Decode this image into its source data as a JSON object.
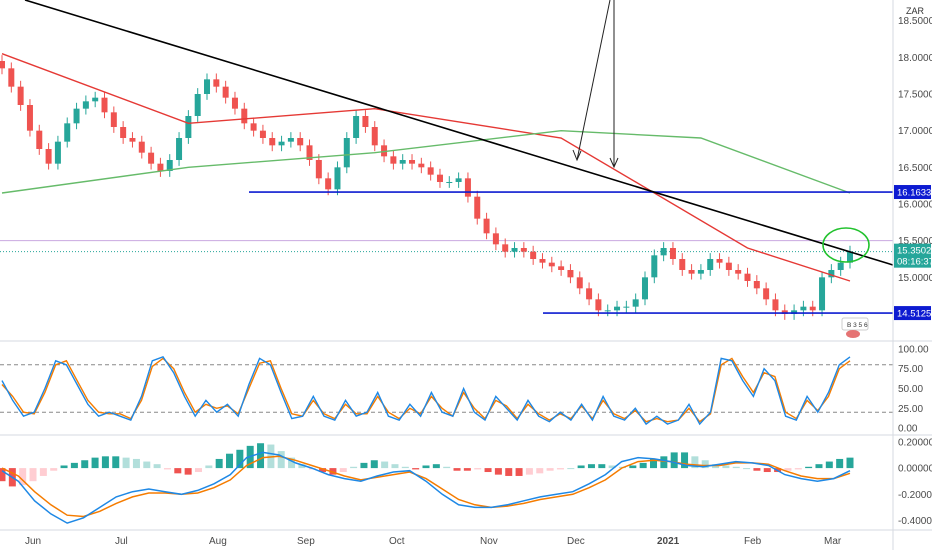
{
  "currency_label": "ZAR",
  "current_price": {
    "price": "15.35021",
    "countdown": "08:16:37"
  },
  "badge_text": "B 3 5 6",
  "horizontal_levels": [
    "16.16333",
    "14.51256"
  ],
  "colors": {
    "bull": "#26a69a",
    "bear": "#ef5350",
    "ma_red": "#e53935",
    "ma_green": "#66bb6a",
    "level_blue": "#0d1bd1",
    "trend": "#000000",
    "stoch_k": "#1e88e5",
    "stoch_d": "#f57c00",
    "macd": "#1e88e5",
    "signal": "#f57c00",
    "annot_green": "#22c22e",
    "price_tag": "#26a69a"
  },
  "chart_data": [
    {
      "type": "candlestick",
      "x_ticks": [
        "Jun",
        "Jul",
        "Aug",
        "Sep",
        "Oct",
        "Nov",
        "Dec",
        "2021",
        "Feb",
        "Mar"
      ],
      "y_ticks": [
        "18.50000",
        "18.00000",
        "17.50000",
        "17.00000",
        "16.50000",
        "16.00000",
        "15.50000",
        "15.00000"
      ],
      "ylim": [
        14.2,
        18.7
      ],
      "grid": false,
      "closes": [
        17.85,
        17.6,
        17.35,
        17.0,
        16.75,
        16.55,
        16.85,
        17.1,
        17.3,
        17.4,
        17.45,
        17.25,
        17.05,
        16.9,
        16.85,
        16.7,
        16.55,
        16.45,
        16.6,
        16.9,
        17.2,
        17.5,
        17.7,
        17.6,
        17.45,
        17.3,
        17.1,
        17.0,
        16.9,
        16.8,
        16.85,
        16.9,
        16.8,
        16.6,
        16.35,
        16.2,
        16.5,
        16.9,
        17.2,
        17.05,
        16.8,
        16.65,
        16.55,
        16.6,
        16.55,
        16.5,
        16.4,
        16.3,
        16.3,
        16.35,
        16.1,
        15.8,
        15.6,
        15.45,
        15.35,
        15.4,
        15.35,
        15.25,
        15.2,
        15.15,
        15.1,
        15.0,
        14.85,
        14.7,
        14.55,
        14.55,
        14.6,
        14.6,
        14.7,
        15.0,
        15.3,
        15.4,
        15.25,
        15.1,
        15.05,
        15.1,
        15.25,
        15.2,
        15.1,
        15.05,
        14.95,
        14.85,
        14.7,
        14.55,
        14.5,
        14.55,
        14.6,
        14.55,
        15.0,
        15.1,
        15.2,
        15.35
      ],
      "series": [
        {
          "name": "",
          "line": "red_ma",
          "x": [
            0,
            20,
            40,
            60,
            80,
            91
          ],
          "y": [
            18.05,
            17.1,
            17.3,
            16.9,
            15.4,
            14.95
          ]
        },
        {
          "name": "",
          "line": "green_ma",
          "x": [
            0,
            20,
            40,
            60,
            75,
            91
          ],
          "y": [
            16.15,
            16.5,
            16.7,
            17.0,
            16.9,
            16.15
          ]
        }
      ],
      "levels": [
        16.16333,
        14.51256
      ],
      "trendline": {
        "x": [
          0,
          91
        ],
        "y": [
          18.78,
          14.95
        ]
      }
    },
    {
      "type": "line",
      "name": "stochastic",
      "y_ticks": [
        "100.00",
        "75.00",
        "50.00",
        "25.00",
        "0.00"
      ],
      "ylim": [
        -5,
        105
      ],
      "levels": [
        80,
        20
      ],
      "series": [
        {
          "name": "",
          "values": [
            60,
            35,
            15,
            20,
            50,
            85,
            80,
            55,
            30,
            15,
            20,
            15,
            10,
            40,
            85,
            90,
            70,
            40,
            15,
            35,
            20,
            30,
            15,
            55,
            88,
            80,
            45,
            12,
            15,
            40,
            15,
            10,
            35,
            15,
            20,
            45,
            15,
            10,
            30,
            15,
            45,
            20,
            15,
            50,
            20,
            10,
            40,
            25,
            10,
            35,
            15,
            8,
            20,
            10,
            30,
            10,
            40,
            15,
            10,
            25,
            5,
            15,
            5,
            10,
            30,
            5,
            20,
            88,
            85,
            60,
            40,
            75,
            60,
            15,
            10,
            40,
            20,
            45,
            80,
            90
          ]
        },
        {
          "name": "",
          "values": [
            55,
            40,
            20,
            18,
            45,
            80,
            85,
            60,
            35,
            20,
            18,
            18,
            12,
            35,
            78,
            88,
            75,
            45,
            20,
            30,
            25,
            28,
            18,
            50,
            82,
            85,
            50,
            18,
            15,
            35,
            18,
            12,
            30,
            18,
            18,
            40,
            20,
            12,
            25,
            18,
            40,
            25,
            15,
            45,
            25,
            12,
            35,
            28,
            12,
            30,
            18,
            10,
            18,
            12,
            28,
            12,
            35,
            18,
            12,
            22,
            8,
            12,
            8,
            10,
            25,
            8,
            18,
            80,
            88,
            65,
            45,
            70,
            65,
            20,
            12,
            35,
            22,
            40,
            75,
            85
          ]
        }
      ]
    },
    {
      "type": "bar",
      "name": "macd",
      "y_ticks": [
        "0.20000",
        "0.00000",
        "-0.20000",
        "-0.40000"
      ],
      "ylim": [
        -0.45,
        0.23
      ],
      "histogram": [
        -0.1,
        -0.14,
        -0.13,
        -0.1,
        -0.06,
        -0.02,
        0.02,
        0.04,
        0.06,
        0.08,
        0.09,
        0.09,
        0.08,
        0.07,
        0.05,
        0.03,
        -0.01,
        -0.04,
        -0.05,
        -0.03,
        0.02,
        0.07,
        0.11,
        0.14,
        0.17,
        0.19,
        0.18,
        0.13,
        0.08,
        0.03,
        -0.01,
        -0.03,
        -0.05,
        -0.03,
        0.01,
        0.04,
        0.06,
        0.05,
        0.03,
        0.01,
        -0.01,
        0.02,
        0.03,
        0.01,
        -0.02,
        -0.02,
        -0.01,
        -0.03,
        -0.05,
        -0.06,
        -0.06,
        -0.05,
        -0.04,
        -0.02,
        -0.01,
        0.0,
        0.02,
        0.03,
        0.03,
        0.02,
        0.01,
        0.02,
        0.04,
        0.07,
        0.09,
        0.12,
        0.12,
        0.09,
        0.06,
        0.03,
        0.02,
        0.01,
        0.0,
        -0.02,
        -0.03,
        -0.03,
        -0.02,
        -0.01,
        0.01,
        0.03,
        0.05,
        0.07,
        0.08
      ],
      "series": [
        {
          "name": "",
          "values": [
            -0.02,
            -0.1,
            -0.25,
            -0.35,
            -0.42,
            -0.38,
            -0.3,
            -0.22,
            -0.18,
            -0.16,
            -0.18,
            -0.2,
            -0.17,
            -0.12,
            -0.05,
            0.08,
            0.12,
            0.1,
            0.04,
            0.0,
            -0.05,
            -0.08,
            -0.1,
            -0.06,
            -0.03,
            -0.02,
            -0.1,
            -0.2,
            -0.28,
            -0.3,
            -0.3,
            -0.28,
            -0.25,
            -0.22,
            -0.2,
            -0.18,
            -0.12,
            -0.05,
            0.05,
            0.08,
            0.07,
            0.05,
            0.02,
            0.01,
            0.03,
            0.05,
            0.04,
            0.02,
            -0.05,
            -0.08,
            -0.1,
            -0.08,
            -0.02
          ]
        },
        {
          "name": "",
          "values": [
            0.0,
            -0.06,
            -0.18,
            -0.28,
            -0.36,
            -0.37,
            -0.33,
            -0.27,
            -0.22,
            -0.19,
            -0.19,
            -0.2,
            -0.19,
            -0.15,
            -0.09,
            0.02,
            0.08,
            0.09,
            0.06,
            0.02,
            -0.02,
            -0.06,
            -0.09,
            -0.07,
            -0.05,
            -0.03,
            -0.08,
            -0.16,
            -0.24,
            -0.28,
            -0.3,
            -0.29,
            -0.27,
            -0.24,
            -0.22,
            -0.2,
            -0.15,
            -0.09,
            0.0,
            0.05,
            0.06,
            0.05,
            0.03,
            0.02,
            0.02,
            0.04,
            0.04,
            0.03,
            -0.02,
            -0.06,
            -0.08,
            -0.08,
            -0.04
          ]
        }
      ]
    }
  ]
}
